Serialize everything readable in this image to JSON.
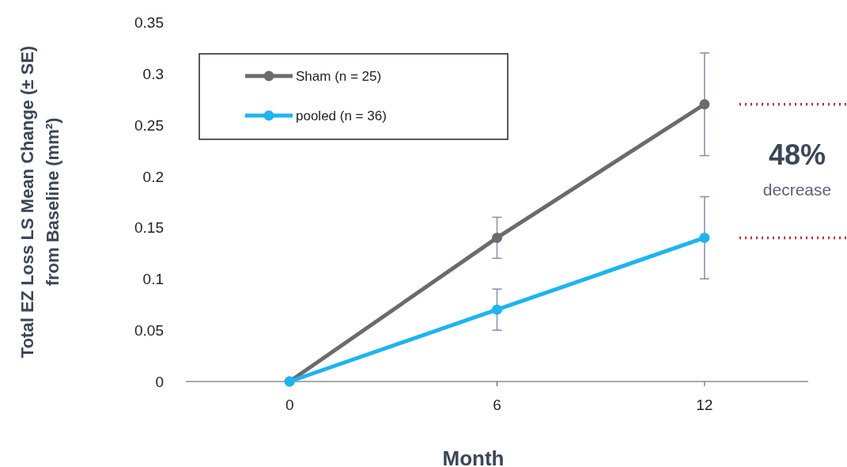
{
  "chart_data": {
    "type": "line",
    "xlabel": "Month",
    "ylabel": "Total EZ Loss LS Mean Change (± SE)\nfrom Baseline (mm²)",
    "x": [
      0,
      6,
      12
    ],
    "xlim": [
      -3,
      15
    ],
    "xticks": [
      0,
      6,
      12
    ],
    "ylim": [
      0,
      0.35
    ],
    "yticks": [
      0,
      0.05,
      0.1,
      0.15,
      0.2,
      0.25,
      0.3,
      0.35
    ],
    "series": [
      {
        "name": "Sham (n = 25)",
        "color": "#6b6b6b",
        "values": [
          0,
          0.14,
          0.27
        ],
        "errors": [
          null,
          0.02,
          0.05
        ]
      },
      {
        "name": "pooled (n = 36)",
        "color": "#1eb4f0",
        "values": [
          0,
          0.07,
          0.14
        ],
        "errors": [
          null,
          0.02,
          0.04
        ]
      }
    ],
    "marker": "circle",
    "line_style": "solid",
    "grid": false,
    "legend": "top left",
    "ref_lines": [
      {
        "axis": "y",
        "value": 0.27,
        "color": "#b5323c",
        "line_style": "dotted"
      },
      {
        "axis": "y",
        "value": 0.14,
        "color": "#b5323c",
        "line_style": "dotted"
      }
    ],
    "annotations": [
      "48%",
      "decrease"
    ]
  }
}
